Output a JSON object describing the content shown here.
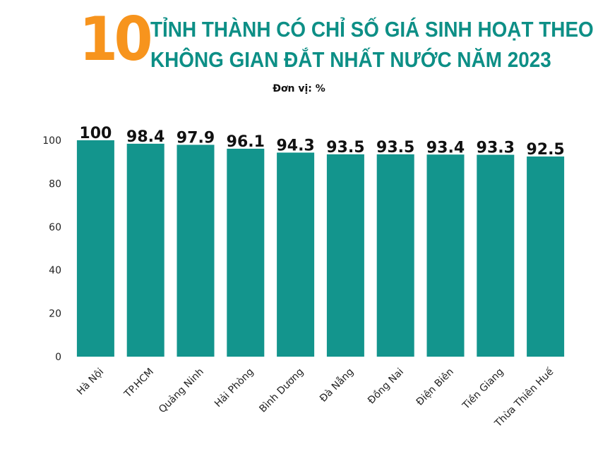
{
  "header": {
    "number": "10",
    "title_line_1": "TỈNH THÀNH CÓ CHỈ SỐ GIÁ SINH HOẠT THEO",
    "title_line_2": "KHÔNG GIAN ĐẮT NHẤT NƯỚC NĂM 2023",
    "unit": "Đơn vị: %"
  },
  "colors": {
    "accent": "#f7941d",
    "title": "#0d8f86",
    "bar": "#13958d"
  },
  "chart_data": {
    "type": "bar",
    "title": "10 TỈNH THÀNH CÓ CHỈ SỐ GIÁ SINH HOẠT THEO KHÔNG GIAN ĐẮT NHẤT NƯỚC NĂM 2023",
    "unit": "Đơn vị: %",
    "categories": [
      "Hà Nội",
      "TP.HCM",
      "Quảng Ninh",
      "Hải Phòng",
      "Bình Dương",
      "Đà Nẵng",
      "Đồng Nai",
      "Điện Biên",
      "Tiền Giang",
      "Thừa Thiên Huế"
    ],
    "values": [
      100,
      98.4,
      97.9,
      96.1,
      94.3,
      93.5,
      93.5,
      93.4,
      93.3,
      92.5
    ],
    "value_labels": [
      "100",
      "98.4",
      "97.9",
      "96.1",
      "94.3",
      "93.5",
      "93.5",
      "93.4",
      "93.3",
      "92.5"
    ],
    "yticks": [
      0,
      20,
      40,
      60,
      80,
      100
    ],
    "ylim": [
      0,
      100
    ],
    "xlabel": "",
    "ylabel": "",
    "grid": false
  }
}
